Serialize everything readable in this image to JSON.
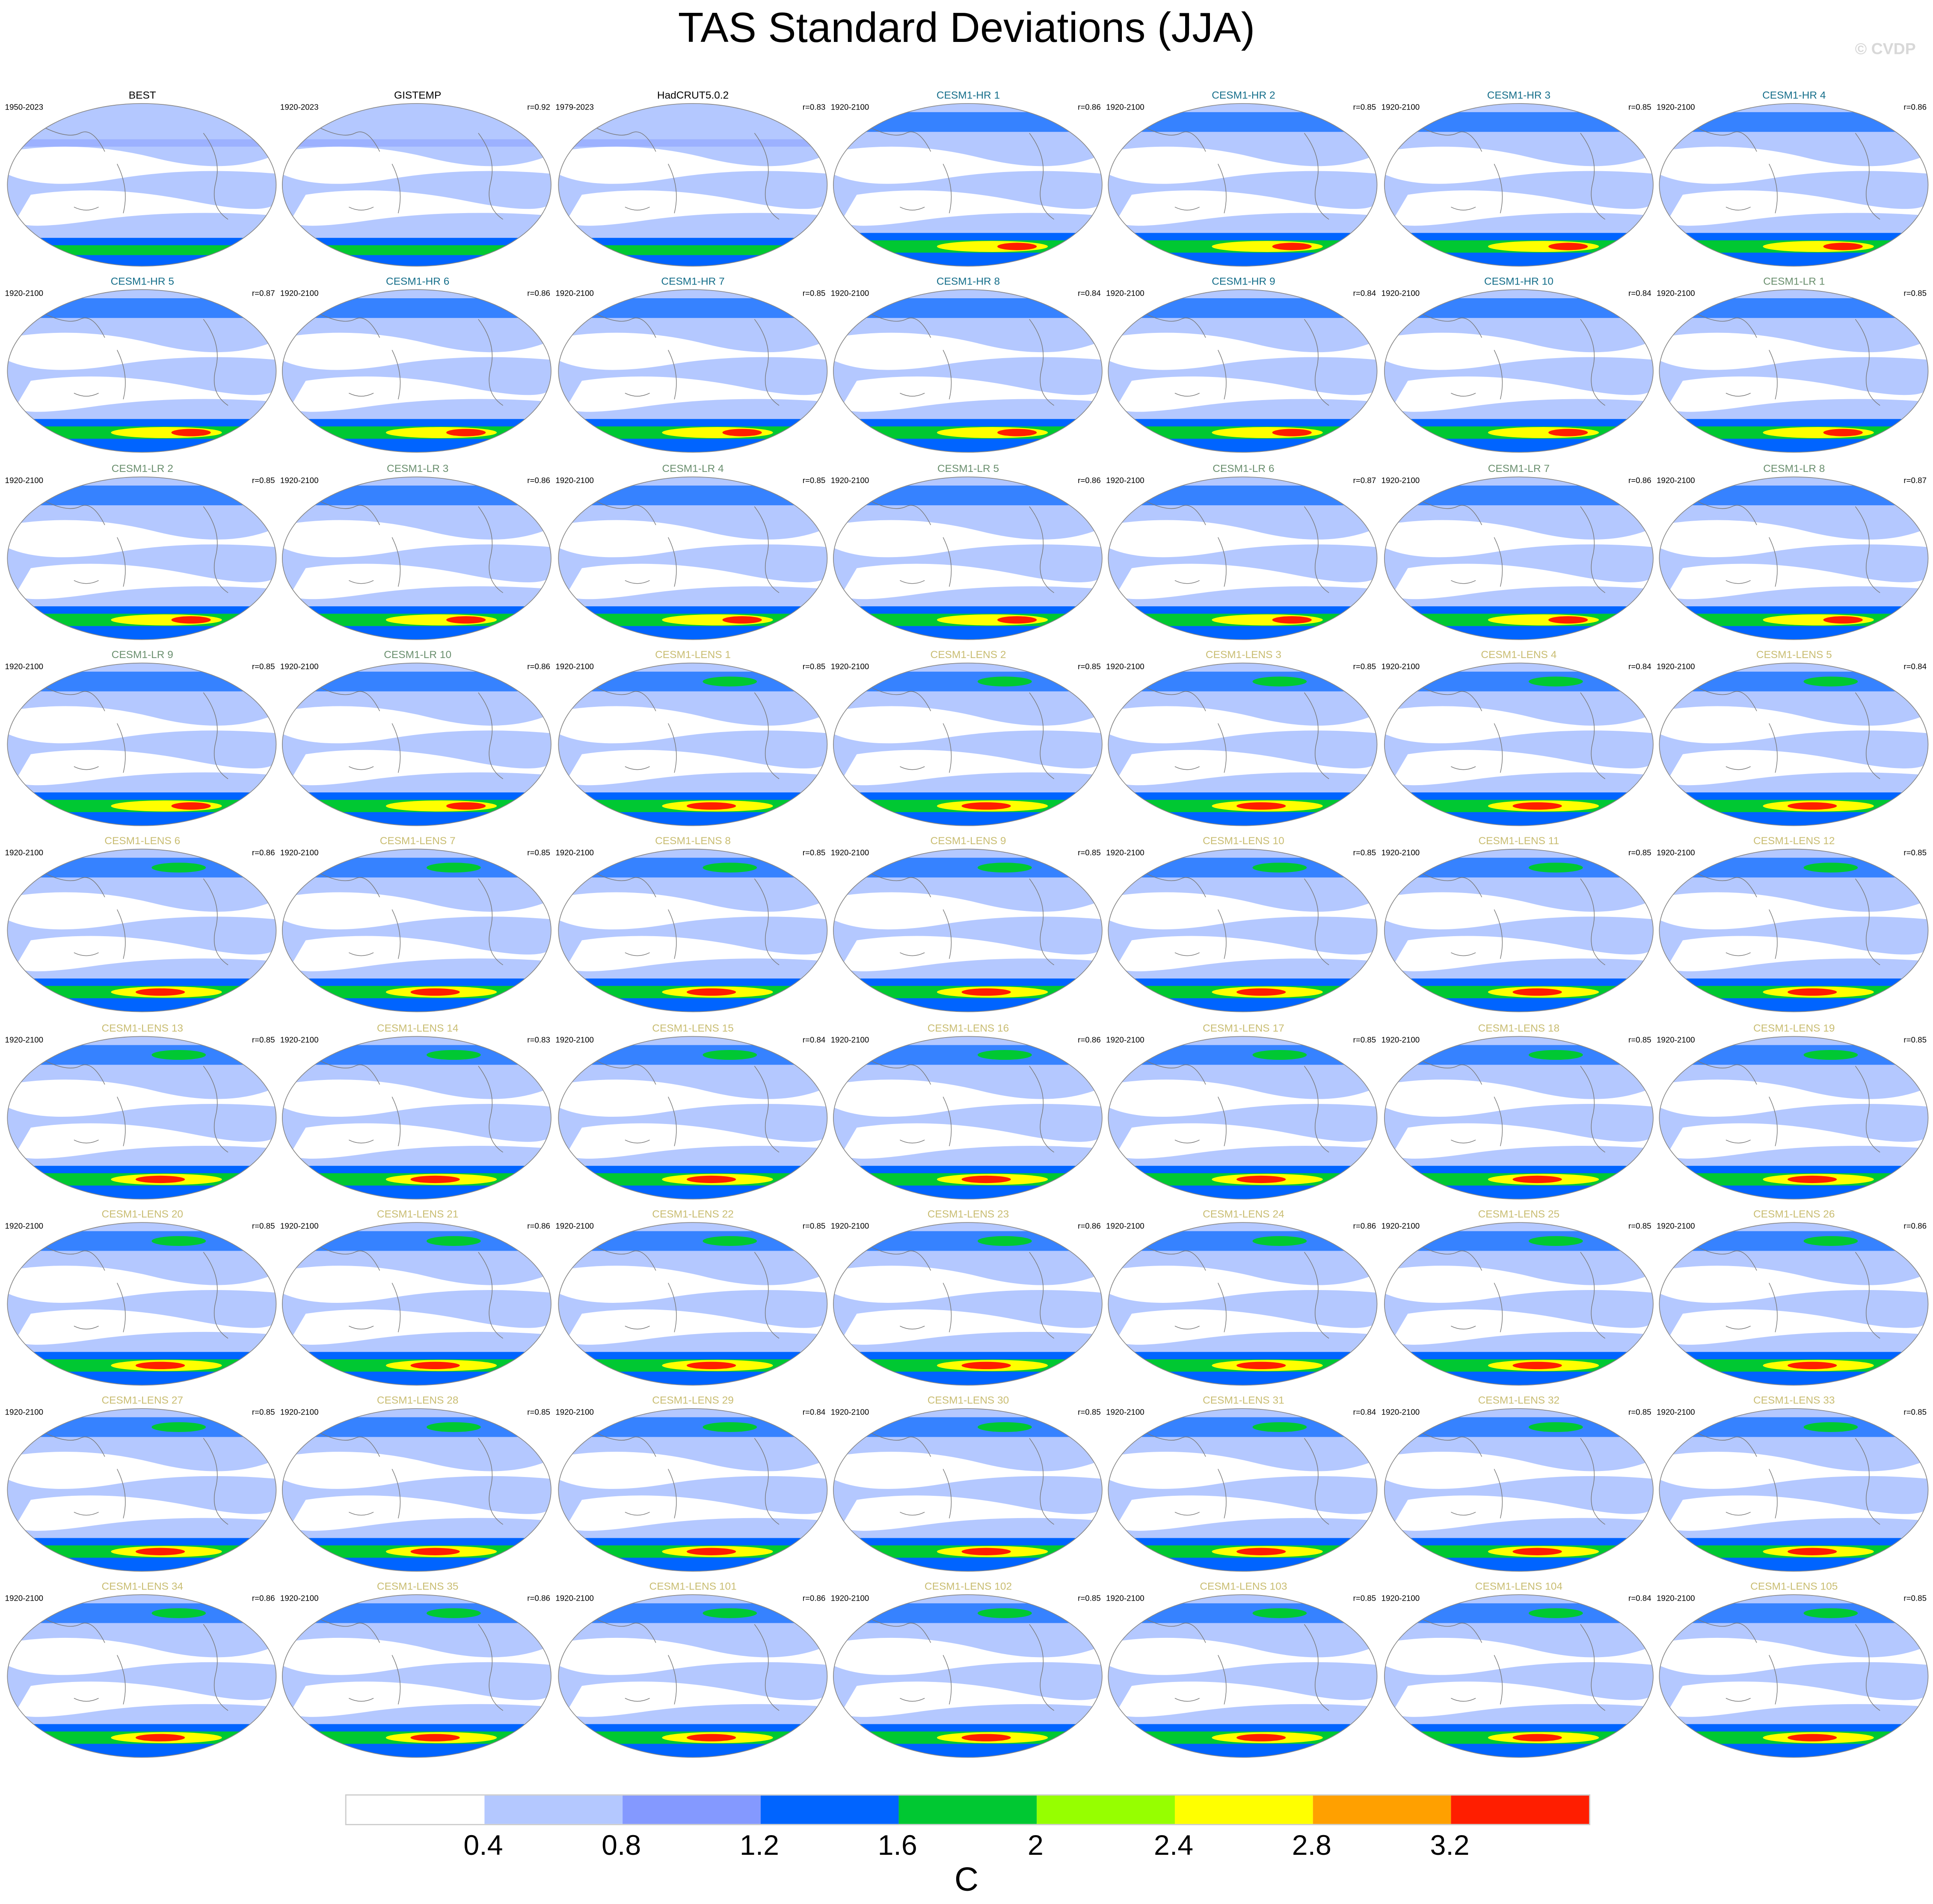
{
  "title": "TAS Standard Deviations (JJA)",
  "watermark": "© CVDP",
  "group_colors": {
    "obs": "#000000",
    "hr": "#156e8a",
    "lr": "#6a8f6e",
    "lens": "#c9bd72"
  },
  "panels": [
    {
      "title": "BEST",
      "years": "1950-2023",
      "r": "",
      "group": "obs"
    },
    {
      "title": "GISTEMP",
      "years": "1920-2023",
      "r": "r=0.92",
      "group": "obs"
    },
    {
      "title": "HadCRUT5.0.2",
      "years": "1979-2023",
      "r": "r=0.83",
      "group": "obs"
    },
    {
      "title": "CESM1-HR 1",
      "years": "1920-2100",
      "r": "r=0.86",
      "group": "hr"
    },
    {
      "title": "CESM1-HR 2",
      "years": "1920-2100",
      "r": "r=0.85",
      "group": "hr"
    },
    {
      "title": "CESM1-HR 3",
      "years": "1920-2100",
      "r": "r=0.85",
      "group": "hr"
    },
    {
      "title": "CESM1-HR 4",
      "years": "1920-2100",
      "r": "r=0.86",
      "group": "hr"
    },
    {
      "title": "CESM1-HR 5",
      "years": "1920-2100",
      "r": "r=0.87",
      "group": "hr"
    },
    {
      "title": "CESM1-HR 6",
      "years": "1920-2100",
      "r": "r=0.86",
      "group": "hr"
    },
    {
      "title": "CESM1-HR 7",
      "years": "1920-2100",
      "r": "r=0.85",
      "group": "hr"
    },
    {
      "title": "CESM1-HR 8",
      "years": "1920-2100",
      "r": "r=0.84",
      "group": "hr"
    },
    {
      "title": "CESM1-HR 9",
      "years": "1920-2100",
      "r": "r=0.84",
      "group": "hr"
    },
    {
      "title": "CESM1-HR 10",
      "years": "1920-2100",
      "r": "r=0.84",
      "group": "hr"
    },
    {
      "title": "CESM1-LR 1",
      "years": "1920-2100",
      "r": "r=0.85",
      "group": "lr"
    },
    {
      "title": "CESM1-LR 2",
      "years": "1920-2100",
      "r": "r=0.85",
      "group": "lr"
    },
    {
      "title": "CESM1-LR 3",
      "years": "1920-2100",
      "r": "r=0.86",
      "group": "lr"
    },
    {
      "title": "CESM1-LR 4",
      "years": "1920-2100",
      "r": "r=0.85",
      "group": "lr"
    },
    {
      "title": "CESM1-LR 5",
      "years": "1920-2100",
      "r": "r=0.86",
      "group": "lr"
    },
    {
      "title": "CESM1-LR 6",
      "years": "1920-2100",
      "r": "r=0.87",
      "group": "lr"
    },
    {
      "title": "CESM1-LR 7",
      "years": "1920-2100",
      "r": "r=0.86",
      "group": "lr"
    },
    {
      "title": "CESM1-LR 8",
      "years": "1920-2100",
      "r": "r=0.87",
      "group": "lr"
    },
    {
      "title": "CESM1-LR 9",
      "years": "1920-2100",
      "r": "r=0.85",
      "group": "lr"
    },
    {
      "title": "CESM1-LR 10",
      "years": "1920-2100",
      "r": "r=0.86",
      "group": "lr"
    },
    {
      "title": "CESM1-LENS 1",
      "years": "1920-2100",
      "r": "r=0.85",
      "group": "lens"
    },
    {
      "title": "CESM1-LENS 2",
      "years": "1920-2100",
      "r": "r=0.85",
      "group": "lens"
    },
    {
      "title": "CESM1-LENS 3",
      "years": "1920-2100",
      "r": "r=0.85",
      "group": "lens"
    },
    {
      "title": "CESM1-LENS 4",
      "years": "1920-2100",
      "r": "r=0.84",
      "group": "lens"
    },
    {
      "title": "CESM1-LENS 5",
      "years": "1920-2100",
      "r": "r=0.84",
      "group": "lens"
    },
    {
      "title": "CESM1-LENS 6",
      "years": "1920-2100",
      "r": "r=0.86",
      "group": "lens"
    },
    {
      "title": "CESM1-LENS 7",
      "years": "1920-2100",
      "r": "r=0.85",
      "group": "lens"
    },
    {
      "title": "CESM1-LENS 8",
      "years": "1920-2100",
      "r": "r=0.85",
      "group": "lens"
    },
    {
      "title": "CESM1-LENS 9",
      "years": "1920-2100",
      "r": "r=0.85",
      "group": "lens"
    },
    {
      "title": "CESM1-LENS 10",
      "years": "1920-2100",
      "r": "r=0.85",
      "group": "lens"
    },
    {
      "title": "CESM1-LENS 11",
      "years": "1920-2100",
      "r": "r=0.85",
      "group": "lens"
    },
    {
      "title": "CESM1-LENS 12",
      "years": "1920-2100",
      "r": "r=0.85",
      "group": "lens"
    },
    {
      "title": "CESM1-LENS 13",
      "years": "1920-2100",
      "r": "r=0.85",
      "group": "lens"
    },
    {
      "title": "CESM1-LENS 14",
      "years": "1920-2100",
      "r": "r=0.83",
      "group": "lens"
    },
    {
      "title": "CESM1-LENS 15",
      "years": "1920-2100",
      "r": "r=0.84",
      "group": "lens"
    },
    {
      "title": "CESM1-LENS 16",
      "years": "1920-2100",
      "r": "r=0.86",
      "group": "lens"
    },
    {
      "title": "CESM1-LENS 17",
      "years": "1920-2100",
      "r": "r=0.85",
      "group": "lens"
    },
    {
      "title": "CESM1-LENS 18",
      "years": "1920-2100",
      "r": "r=0.85",
      "group": "lens"
    },
    {
      "title": "CESM1-LENS 19",
      "years": "1920-2100",
      "r": "r=0.85",
      "group": "lens"
    },
    {
      "title": "CESM1-LENS 20",
      "years": "1920-2100",
      "r": "r=0.85",
      "group": "lens"
    },
    {
      "title": "CESM1-LENS 21",
      "years": "1920-2100",
      "r": "r=0.86",
      "group": "lens"
    },
    {
      "title": "CESM1-LENS 22",
      "years": "1920-2100",
      "r": "r=0.85",
      "group": "lens"
    },
    {
      "title": "CESM1-LENS 23",
      "years": "1920-2100",
      "r": "r=0.86",
      "group": "lens"
    },
    {
      "title": "CESM1-LENS 24",
      "years": "1920-2100",
      "r": "r=0.86",
      "group": "lens"
    },
    {
      "title": "CESM1-LENS 25",
      "years": "1920-2100",
      "r": "r=0.85",
      "group": "lens"
    },
    {
      "title": "CESM1-LENS 26",
      "years": "1920-2100",
      "r": "r=0.86",
      "group": "lens"
    },
    {
      "title": "CESM1-LENS 27",
      "years": "1920-2100",
      "r": "r=0.85",
      "group": "lens"
    },
    {
      "title": "CESM1-LENS 28",
      "years": "1920-2100",
      "r": "r=0.85",
      "group": "lens"
    },
    {
      "title": "CESM1-LENS 29",
      "years": "1920-2100",
      "r": "r=0.84",
      "group": "lens"
    },
    {
      "title": "CESM1-LENS 30",
      "years": "1920-2100",
      "r": "r=0.85",
      "group": "lens"
    },
    {
      "title": "CESM1-LENS 31",
      "years": "1920-2100",
      "r": "r=0.84",
      "group": "lens"
    },
    {
      "title": "CESM1-LENS 32",
      "years": "1920-2100",
      "r": "r=0.85",
      "group": "lens"
    },
    {
      "title": "CESM1-LENS 33",
      "years": "1920-2100",
      "r": "r=0.85",
      "group": "lens"
    },
    {
      "title": "CESM1-LENS 34",
      "years": "1920-2100",
      "r": "r=0.86",
      "group": "lens"
    },
    {
      "title": "CESM1-LENS 35",
      "years": "1920-2100",
      "r": "r=0.86",
      "group": "lens"
    },
    {
      "title": "CESM1-LENS 101",
      "years": "1920-2100",
      "r": "r=0.86",
      "group": "lens"
    },
    {
      "title": "CESM1-LENS 102",
      "years": "1920-2100",
      "r": "r=0.85",
      "group": "lens"
    },
    {
      "title": "CESM1-LENS 103",
      "years": "1920-2100",
      "r": "r=0.85",
      "group": "lens"
    },
    {
      "title": "CESM1-LENS 104",
      "years": "1920-2100",
      "r": "r=0.84",
      "group": "lens"
    },
    {
      "title": "CESM1-LENS 105",
      "years": "1920-2100",
      "r": "r=0.85",
      "group": "lens"
    }
  ],
  "colorbar": {
    "unit": "C",
    "labels": [
      "0.4",
      "0.8",
      "1.2",
      "1.6",
      "2",
      "2.4",
      "2.8",
      "3.2"
    ],
    "colors": [
      "#ffffff",
      "#b4c8ff",
      "#8499ff",
      "#0064ff",
      "#00c832",
      "#96ff00",
      "#ffff00",
      "#ffa000",
      "#ff1e00"
    ]
  }
}
